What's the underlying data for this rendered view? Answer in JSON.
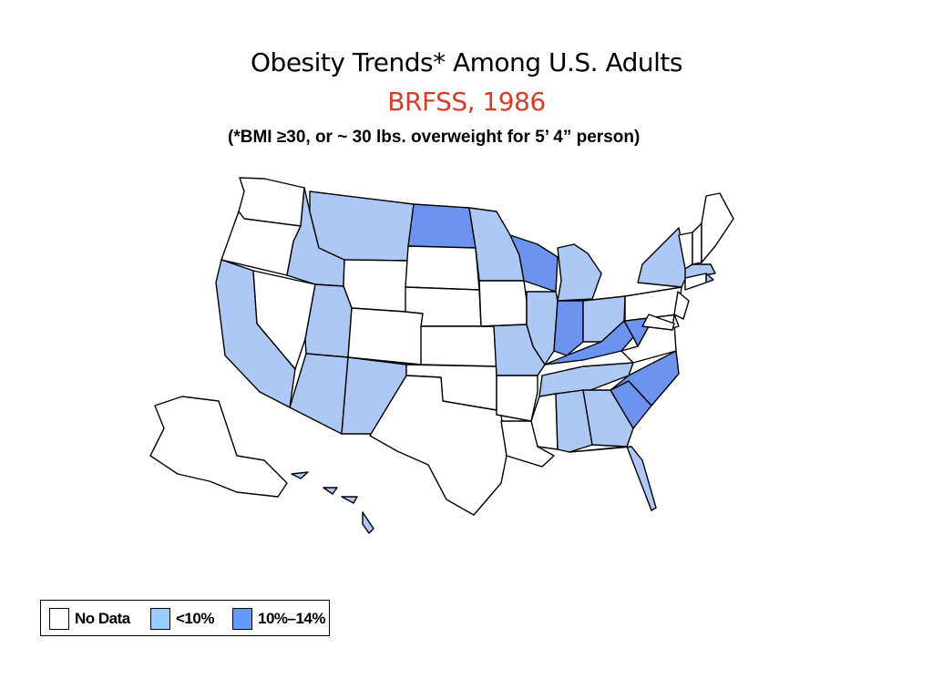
{
  "title": "Obesity Trends* Among U.S. Adults",
  "subtitle": "BRFSS, 1986",
  "note": "(*BMI ≥30, or ~ 30 lbs. overweight for 5’ 4” person)",
  "colors": {
    "title": "#000000",
    "subtitle": "#d93b2b",
    "no_data": "#ffffff",
    "lt10": "#aec8f5",
    "p10_14": "#6b93ef",
    "border": "#000000"
  },
  "legend": [
    {
      "label": "No Data",
      "color": "#ffffff"
    },
    {
      "label": "<10%",
      "color": "#99ccff"
    },
    {
      "label": "10%–14%",
      "color": "#6699ff"
    }
  ],
  "categories": {
    "no_data": [
      "WA",
      "OR",
      "NV",
      "WY",
      "SD",
      "NE",
      "CO",
      "KS",
      "OK",
      "TX",
      "IA",
      "AR",
      "LA",
      "MS",
      "PA",
      "NJ",
      "DE",
      "MD",
      "VA",
      "VT",
      "NH",
      "ME",
      "CT",
      "AK"
    ],
    "lt10": [
      "CA",
      "ID",
      "MT",
      "UT",
      "AZ",
      "NM",
      "MN",
      "MO",
      "IL",
      "MI",
      "OH",
      "TN",
      "AL",
      "GA",
      "FL",
      "NY",
      "MA",
      "RI",
      "HI"
    ],
    "p10_14": [
      "ND",
      "WI",
      "IN",
      "KY",
      "WV",
      "NC",
      "SC"
    ]
  }
}
